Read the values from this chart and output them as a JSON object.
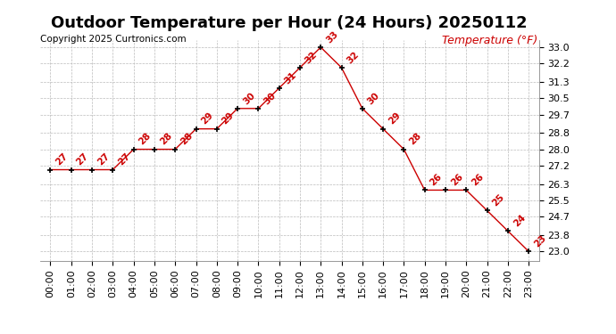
{
  "title": "Outdoor Temperature per Hour (24 Hours) 20250112",
  "copyright": "Copyright 2025 Curtronics.com",
  "legend_label": "Temperature (°F)",
  "hours": [
    0,
    1,
    2,
    3,
    4,
    5,
    6,
    7,
    8,
    9,
    10,
    11,
    12,
    13,
    14,
    15,
    16,
    17,
    18,
    19,
    20,
    21,
    22,
    23
  ],
  "temperatures": [
    27,
    27,
    27,
    27,
    28,
    28,
    28,
    29,
    29,
    30,
    30,
    31,
    32,
    33,
    32,
    30,
    29,
    28,
    26,
    26,
    26,
    25,
    24,
    23
  ],
  "yticks": [
    23.0,
    23.8,
    24.7,
    25.5,
    26.3,
    27.2,
    28.0,
    28.8,
    29.7,
    30.5,
    31.3,
    32.2,
    33.0
  ],
  "ylim": [
    22.55,
    33.35
  ],
  "xlim": [
    -0.5,
    23.5
  ],
  "line_color": "#cc0000",
  "marker_color": "#000000",
  "title_fontsize": 13,
  "copyright_fontsize": 7.5,
  "label_fontsize": 9,
  "annot_fontsize": 7.5,
  "tick_fontsize": 8,
  "background_color": "#ffffff",
  "grid_color": "#bbbbbb"
}
